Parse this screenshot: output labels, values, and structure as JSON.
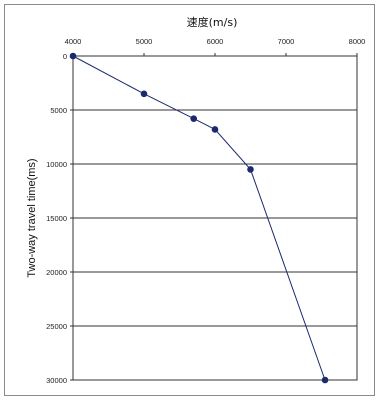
{
  "chart_data": {
    "type": "line",
    "title": "速度(m/s)",
    "xlabel": "速度(m/s)",
    "ylabel": "Two-way travel time(ms)",
    "x_axis_position": "top",
    "y_axis_inverted": true,
    "xlim": [
      4000,
      8000
    ],
    "ylim": [
      0,
      30000
    ],
    "x_ticks": [
      "4000",
      "5000",
      "6000",
      "7000",
      "8000"
    ],
    "y_ticks": [
      "0",
      "5000",
      "10000",
      "15000",
      "20000",
      "25000",
      "30000"
    ],
    "grid": "horizontal",
    "series": [
      {
        "color": "#1a2a6c",
        "marker": "circle",
        "points": [
          {
            "x": 4000,
            "y": 0
          },
          {
            "x": 5000,
            "y": 3500
          },
          {
            "x": 5700,
            "y": 5800
          },
          {
            "x": 6000,
            "y": 6800
          },
          {
            "x": 6500,
            "y": 10500
          },
          {
            "x": 7550,
            "y": 30000
          }
        ]
      }
    ]
  }
}
